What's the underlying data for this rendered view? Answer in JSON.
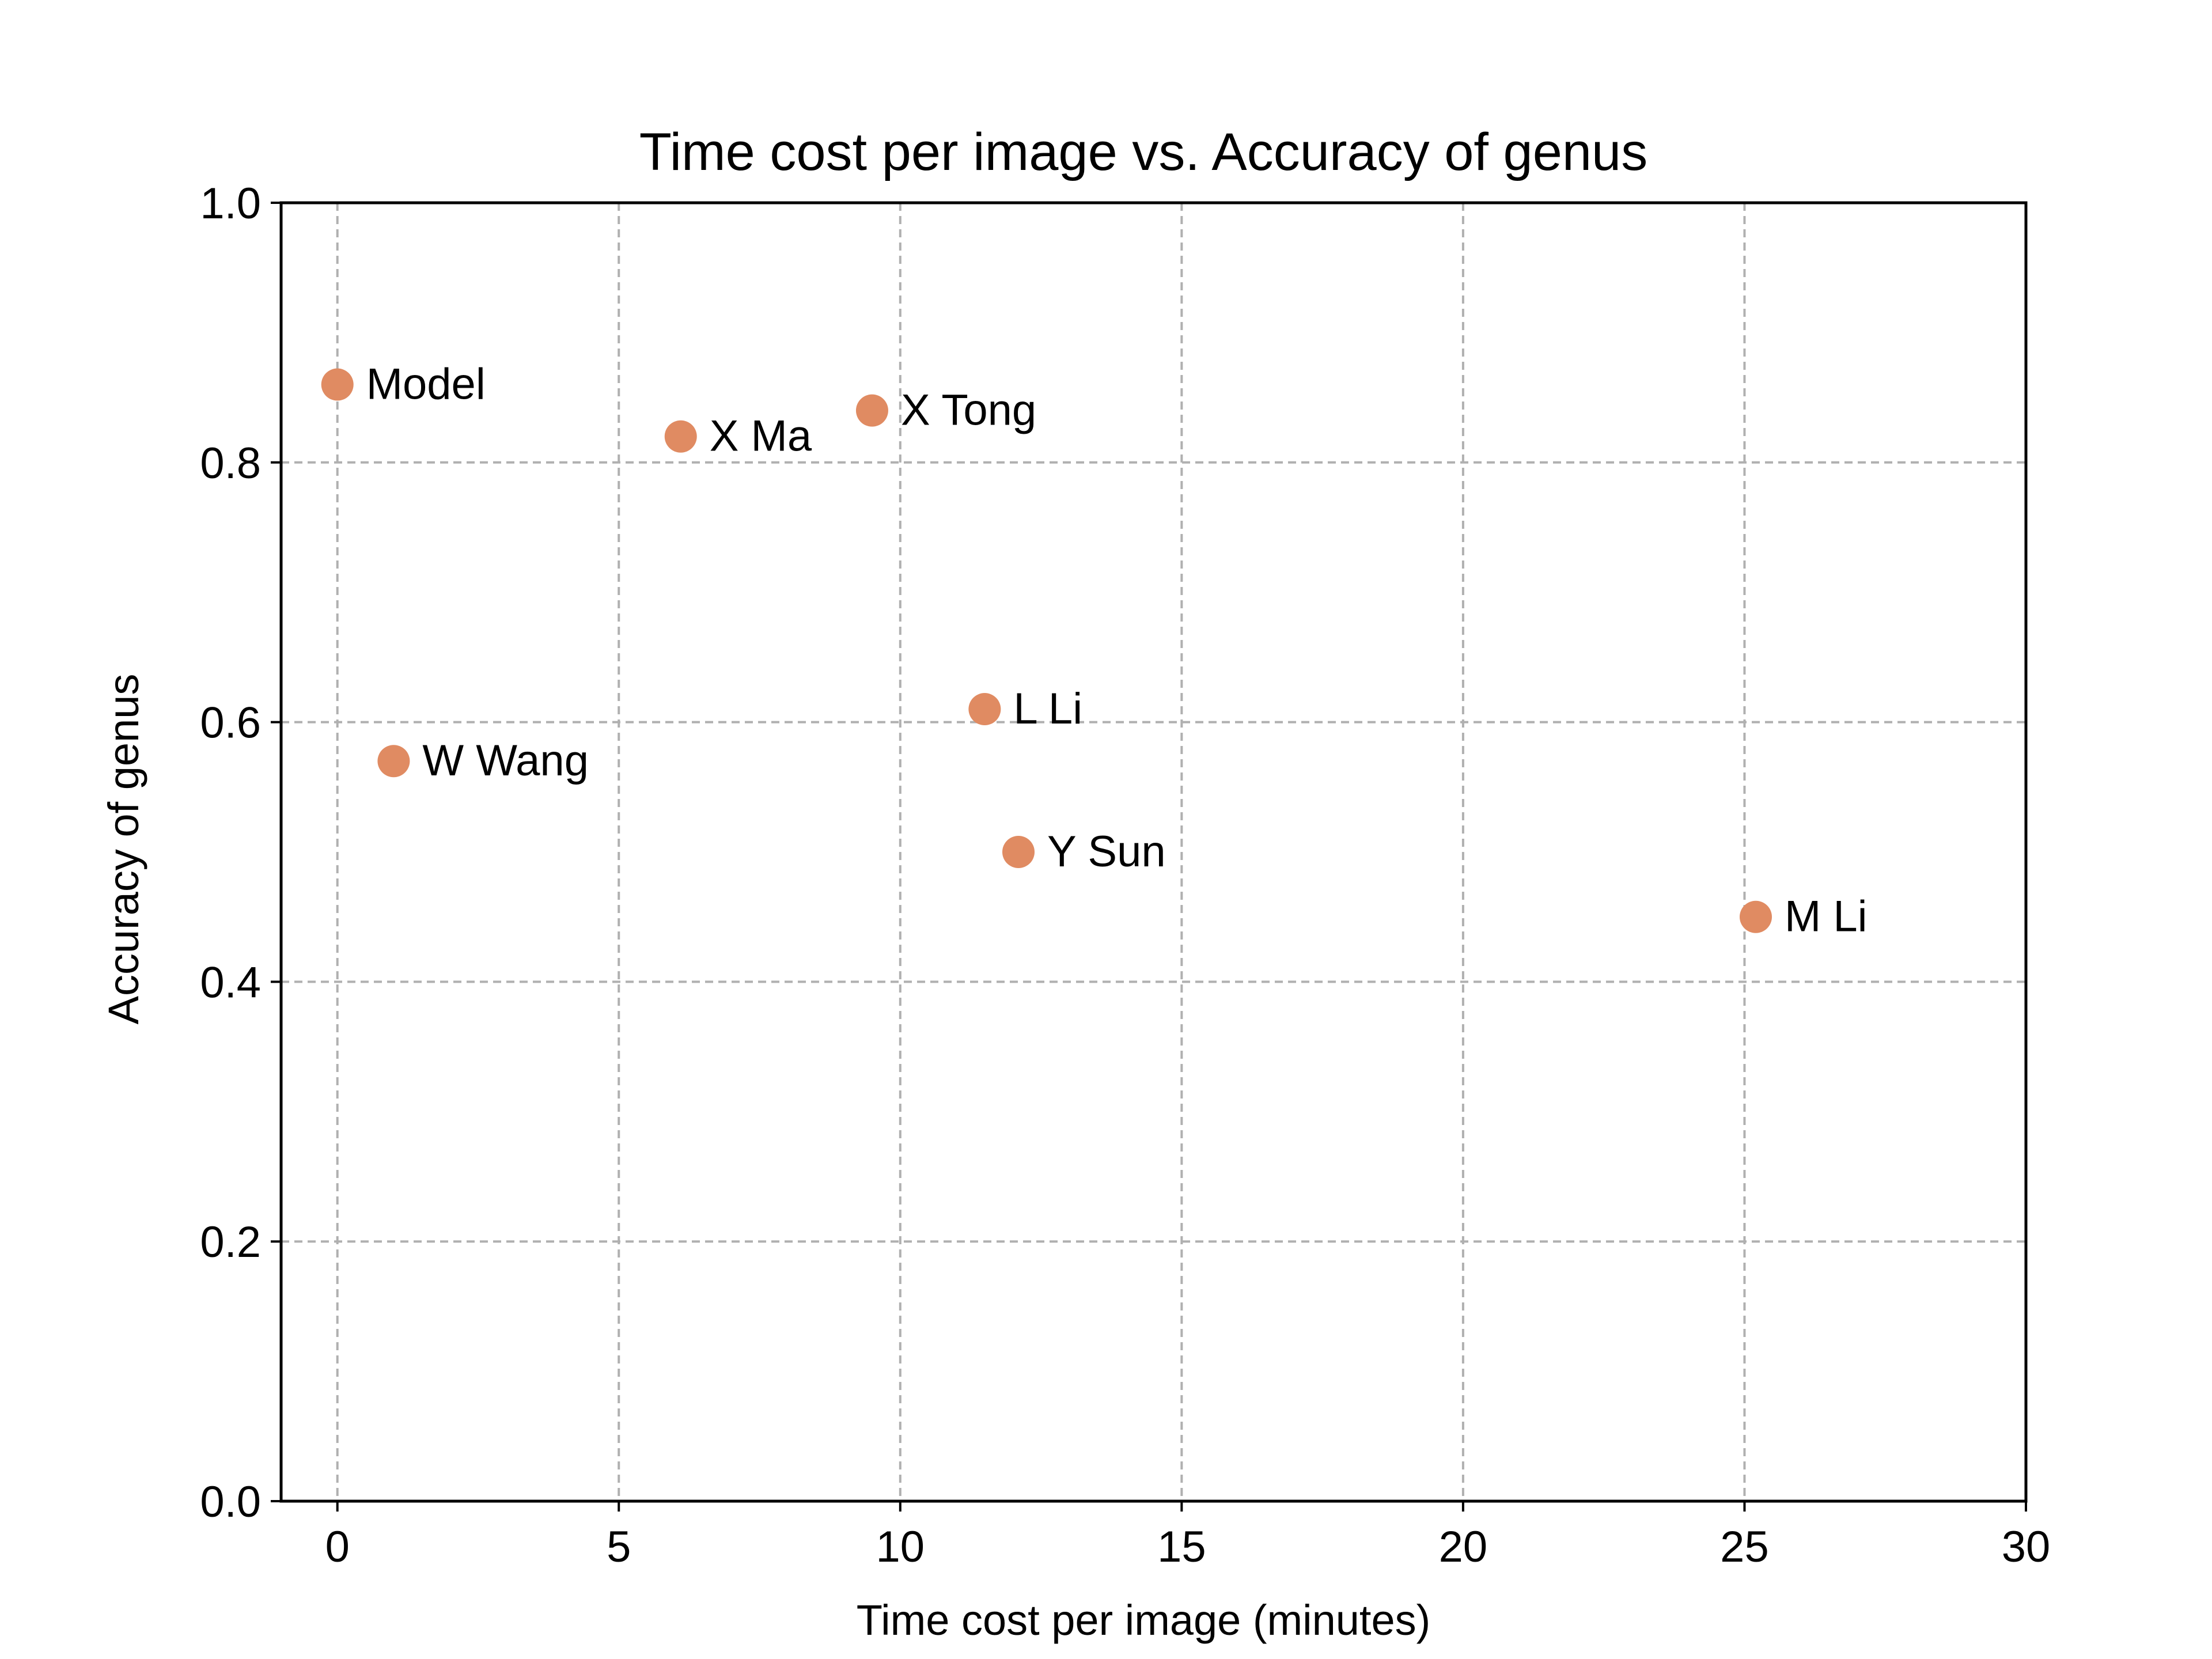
{
  "chart_data": {
    "type": "scatter",
    "title": "Time cost per image vs. Accuracy of genus",
    "xlabel": "Time cost per image (minutes)",
    "ylabel": "Accuracy of genus",
    "xlim": [
      -1,
      30
    ],
    "ylim": [
      0.0,
      1.0
    ],
    "xticks": [
      0,
      5,
      10,
      15,
      20,
      25,
      30
    ],
    "xtick_labels": [
      "0",
      "5",
      "10",
      "15",
      "20",
      "25",
      "30"
    ],
    "yticks": [
      0.0,
      0.2,
      0.4,
      0.6,
      0.8,
      1.0
    ],
    "ytick_labels": [
      "0.0",
      "0.2",
      "0.4",
      "0.6",
      "0.8",
      "1.0"
    ],
    "grid": true,
    "marker_color": "#e08b62",
    "points": [
      {
        "label": "Model",
        "x": 0.0,
        "y": 0.86
      },
      {
        "label": "W Wang",
        "x": 1.0,
        "y": 0.57
      },
      {
        "label": "X Ma",
        "x": 6.1,
        "y": 0.82
      },
      {
        "label": "X Tong",
        "x": 9.5,
        "y": 0.84
      },
      {
        "label": "L Li",
        "x": 11.5,
        "y": 0.61
      },
      {
        "label": "Y Sun",
        "x": 12.1,
        "y": 0.5
      },
      {
        "label": "M Li",
        "x": 25.2,
        "y": 0.45
      }
    ]
  }
}
